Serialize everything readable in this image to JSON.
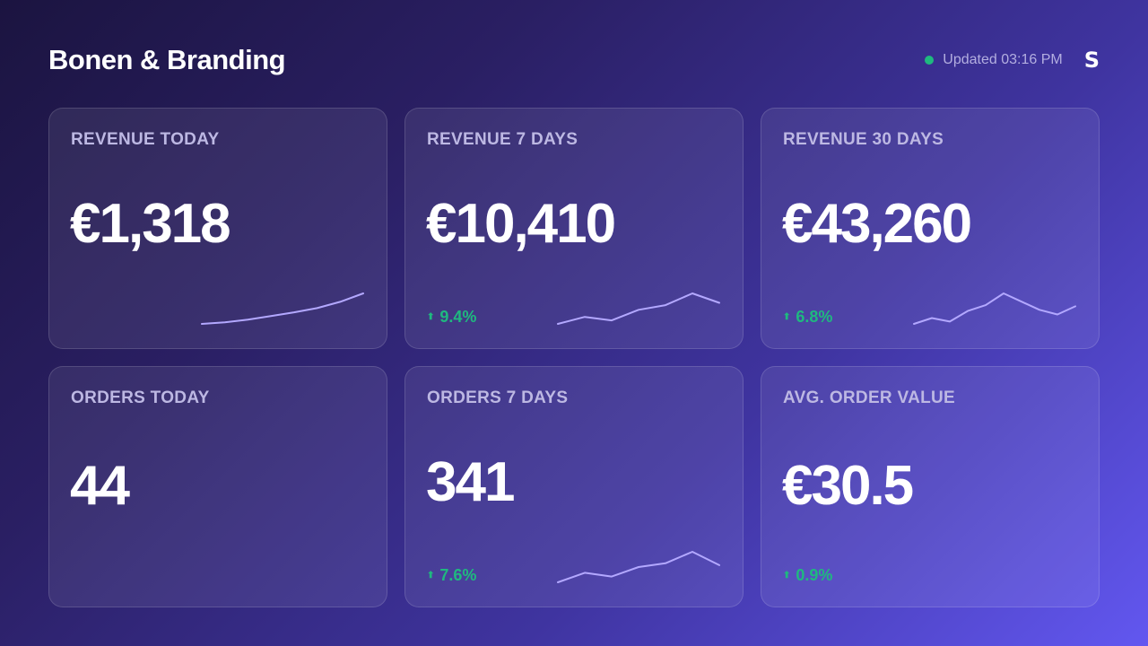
{
  "header": {
    "title": "Bonen & Branding",
    "updated": "Updated 03:16 PM",
    "brand_glyph": "S",
    "status_color": "#1fb97f"
  },
  "colors": {
    "positive": "#1fb97f",
    "sparkline": "#b3a8ff"
  },
  "cards": [
    {
      "label": "REVENUE TODAY",
      "value": "€1,318",
      "change": "",
      "trend": [
        0,
        3,
        8,
        15,
        22,
        30,
        42,
        58
      ]
    },
    {
      "label": "REVENUE 7 DAYS",
      "value": "€10,410",
      "change": "9.4%",
      "trend": [
        2,
        8,
        5,
        14,
        18,
        28,
        20
      ]
    },
    {
      "label": "REVENUE 30 DAYS",
      "value": "€43,260",
      "change": "6.8%",
      "trend": [
        1,
        6,
        3,
        12,
        17,
        27,
        20,
        13,
        9,
        16
      ]
    },
    {
      "label": "ORDERS TODAY",
      "value": "44",
      "change": "",
      "trend": []
    },
    {
      "label": "ORDERS 7 DAYS",
      "value": "341",
      "change": "7.6%",
      "trend": [
        3,
        8,
        6,
        11,
        13,
        19,
        12
      ]
    },
    {
      "label": "AVG. ORDER VALUE",
      "value": "€30.5",
      "change": "0.9%",
      "trend": []
    }
  ]
}
